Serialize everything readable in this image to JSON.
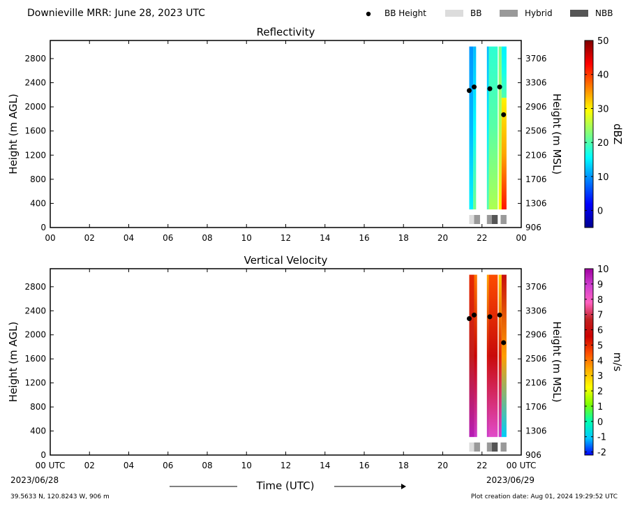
{
  "header": {
    "title": "Downieville MRR:  June 28, 2023 UTC",
    "legend": [
      {
        "label": "BB Height",
        "kind": "dot",
        "color": "#000000"
      },
      {
        "label": "BB",
        "kind": "box",
        "color": "#dcdcdc"
      },
      {
        "label": "Hybrid",
        "kind": "box",
        "color": "#999999"
      },
      {
        "label": "NBB",
        "kind": "box",
        "color": "#555555"
      }
    ]
  },
  "footer": {
    "x_axis_label": "Time (UTC)",
    "start_date": "2023/06/28",
    "end_date": "2023/06/29",
    "location": "39.5633 N, 120.8243 W, 906 m",
    "creation": "Plot creation date: Aug 01, 2024 19:29:52 UTC"
  },
  "colors": {
    "axis": "#000000",
    "dbz_scale": [
      "#00008f",
      "#0000ff",
      "#007fff",
      "#00ffff",
      "#7fff7f",
      "#ffff00",
      "#ff7f00",
      "#ff0000",
      "#7f0000"
    ],
    "vel_scale": [
      "#0000ff",
      "#00c8ff",
      "#00ffb0",
      "#7fff00",
      "#ffff00",
      "#ffb000",
      "#ff5000",
      "#cc0000",
      "#c02020",
      "#ff60c0",
      "#d040d0",
      "#a000a0"
    ]
  },
  "chart_data": [
    {
      "type": "heatmap",
      "title": "Reflectivity",
      "ylabel": "Height (m AGL)",
      "ylabel_right": "Height (m MSL)",
      "x_ticks": [
        "00",
        "02",
        "04",
        "06",
        "08",
        "10",
        "12",
        "14",
        "16",
        "18",
        "20",
        "22",
        "00"
      ],
      "xlim": [
        0,
        24
      ],
      "ylim": [
        0,
        3100
      ],
      "y_ticks": [
        0,
        400,
        800,
        1200,
        1600,
        2000,
        2400,
        2800
      ],
      "y_ticks_right": [
        906,
        1306,
        1706,
        2106,
        2506,
        2906,
        3306,
        3706
      ],
      "colorbar": {
        "label": "dBZ",
        "range": [
          -5,
          50
        ],
        "ticks": [
          0,
          10,
          20,
          30,
          40,
          50
        ]
      },
      "data_columns": [
        {
          "t": 21.35,
          "dt": 0.2,
          "bottom": 300,
          "top": 3000,
          "value_low": 15,
          "value_high": 10
        },
        {
          "t": 21.55,
          "dt": 0.15,
          "bottom": 300,
          "top": 3000,
          "value_low": 22,
          "value_high": 12
        },
        {
          "t": 22.25,
          "dt": 0.1,
          "bottom": 300,
          "top": 3000,
          "value_low": 20,
          "value_high": 12
        },
        {
          "t": 22.35,
          "dt": 0.45,
          "bottom": 300,
          "top": 3000,
          "value_low": 25,
          "value_high": 18
        },
        {
          "t": 22.85,
          "dt": 0.15,
          "bottom": 300,
          "top": 3000,
          "value_low": 30,
          "value_high": 22
        },
        {
          "t": 23.0,
          "dt": 0.25,
          "bottom": 300,
          "top": 2150,
          "value_low": 42,
          "value_high": 30
        },
        {
          "t": 23.0,
          "dt": 0.25,
          "bottom": 2150,
          "top": 3000,
          "value_low": 20,
          "value_high": 15
        }
      ],
      "bb_heights": [
        {
          "t": 21.35,
          "h": 2270
        },
        {
          "t": 21.6,
          "h": 2330
        },
        {
          "t": 22.4,
          "h": 2300
        },
        {
          "t": 22.9,
          "h": 2330
        },
        {
          "t": 23.1,
          "h": 1870
        }
      ],
      "bb_types": [
        {
          "t": 21.35,
          "dt": 0.25,
          "type": "BB"
        },
        {
          "t": 21.6,
          "dt": 0.3,
          "type": "Hybrid"
        },
        {
          "t": 22.25,
          "dt": 0.25,
          "type": "Hybrid"
        },
        {
          "t": 22.5,
          "dt": 0.3,
          "type": "NBB"
        },
        {
          "t": 22.95,
          "dt": 0.3,
          "type": "Hybrid"
        }
      ]
    },
    {
      "type": "heatmap",
      "title": "Vertical Velocity",
      "ylabel": "Height (m AGL)",
      "ylabel_right": "Height (m MSL)",
      "x_ticks": [
        "00 UTC",
        "02",
        "04",
        "06",
        "08",
        "10",
        "12",
        "14",
        "16",
        "18",
        "20",
        "22",
        "00 UTC"
      ],
      "xlim": [
        0,
        24
      ],
      "ylim": [
        0,
        3100
      ],
      "y_ticks": [
        0,
        400,
        800,
        1200,
        1600,
        2000,
        2400,
        2800
      ],
      "y_ticks_right": [
        906,
        1306,
        1706,
        2106,
        2506,
        2906,
        3306,
        3706
      ],
      "colorbar": {
        "label": "m/s",
        "range": [
          -2.2,
          10
        ],
        "ticks": [
          -2,
          -1,
          0,
          1,
          2,
          3,
          4,
          5,
          6,
          7,
          8,
          9,
          10
        ]
      },
      "data_columns": [
        {
          "t": 21.35,
          "dt": 0.25,
          "bottom": 300,
          "top": 3000,
          "value_low": 9.5,
          "value_high": 5
        },
        {
          "t": 21.6,
          "dt": 0.15,
          "bottom": 300,
          "top": 3000,
          "value_low": 9,
          "value_high": 4
        },
        {
          "t": 22.25,
          "dt": 0.1,
          "bottom": 300,
          "top": 3000,
          "value_low": 9,
          "value_high": 3.5
        },
        {
          "t": 22.35,
          "dt": 0.45,
          "bottom": 300,
          "top": 3000,
          "value_low": 8.5,
          "value_high": 4.5
        },
        {
          "t": 22.85,
          "dt": 0.15,
          "bottom": 300,
          "top": 3000,
          "value_low": 9,
          "value_high": 3
        },
        {
          "t": 23.0,
          "dt": 0.25,
          "bottom": 300,
          "top": 3000,
          "value_low": -1,
          "value_high": 6
        }
      ],
      "bb_heights": [
        {
          "t": 21.35,
          "h": 2270
        },
        {
          "t": 21.6,
          "h": 2330
        },
        {
          "t": 22.4,
          "h": 2300
        },
        {
          "t": 22.9,
          "h": 2330
        },
        {
          "t": 23.1,
          "h": 1870
        }
      ],
      "bb_types": [
        {
          "t": 21.35,
          "dt": 0.25,
          "type": "BB"
        },
        {
          "t": 21.6,
          "dt": 0.3,
          "type": "Hybrid"
        },
        {
          "t": 22.25,
          "dt": 0.25,
          "type": "Hybrid"
        },
        {
          "t": 22.5,
          "dt": 0.3,
          "type": "NBB"
        },
        {
          "t": 22.95,
          "dt": 0.3,
          "type": "Hybrid"
        }
      ]
    }
  ]
}
